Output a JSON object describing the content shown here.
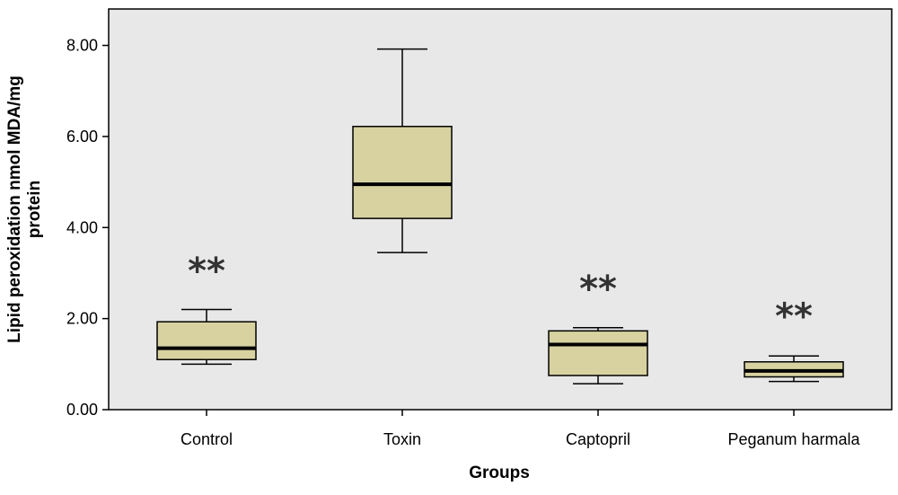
{
  "chart_data": {
    "type": "box",
    "title": "",
    "xlabel": "Groups",
    "ylabel_lines": [
      "Lipid peroxidation nmol MDA/mg",
      "protein"
    ],
    "ylim": [
      0,
      8.8
    ],
    "yticks": [
      0,
      2,
      4,
      6,
      8
    ],
    "ytick_labels": [
      "0.00",
      "2.00",
      "4.00",
      "6.00",
      "8.00"
    ],
    "grid": false,
    "colors": {
      "box_fill": "#d7d2a0",
      "plot_bg": "#e8e8e8",
      "outline": "#000000"
    },
    "categories": [
      "Control",
      "Toxin",
      "Captopril",
      "Peganum harmala"
    ],
    "boxes": [
      {
        "min": 1.0,
        "q1": 1.1,
        "median": 1.35,
        "q3": 1.93,
        "max": 2.2,
        "annotation": "**",
        "annotation_y": 3.1
      },
      {
        "min": 3.45,
        "q1": 4.2,
        "median": 4.95,
        "q3": 6.22,
        "max": 7.92,
        "annotation": ""
      },
      {
        "min": 0.57,
        "q1": 0.75,
        "median": 1.43,
        "q3": 1.73,
        "max": 1.8,
        "annotation": "**",
        "annotation_y": 2.7
      },
      {
        "min": 0.62,
        "q1": 0.72,
        "median": 0.85,
        "q3": 1.05,
        "max": 1.18,
        "annotation": "**",
        "annotation_y": 2.1
      }
    ]
  }
}
